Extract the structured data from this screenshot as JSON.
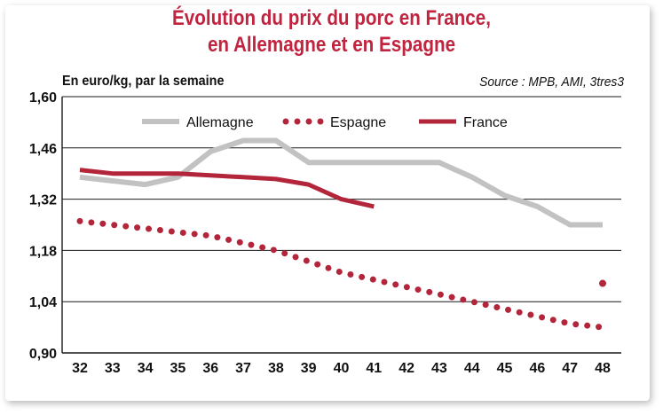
{
  "header": {
    "title_line1": "Évolution du prix du porc en France,",
    "title_line2": "en Allemagne et en Espagne",
    "unit_label": "En euro/kg, par la semaine",
    "source": "Source : MPB, AMI, 3tres3"
  },
  "colors": {
    "title": "#c0243f",
    "allemagne": "#c2c2c2",
    "espagne": "#b3253a",
    "france": "#b3253a"
  },
  "chart_data": {
    "type": "line",
    "x": [
      32,
      33,
      34,
      35,
      36,
      37,
      38,
      39,
      40,
      41,
      42,
      43,
      44,
      45,
      46,
      47,
      48
    ],
    "xticks": [
      "32",
      "33",
      "34",
      "35",
      "36",
      "37",
      "38",
      "39",
      "40",
      "41",
      "42",
      "43",
      "44",
      "45",
      "46",
      "47",
      "48"
    ],
    "yticks": [
      "1,60",
      "1,46",
      "1,32",
      "1,18",
      "1,04",
      "0,90"
    ],
    "ylim": [
      0.9,
      1.6
    ],
    "grid": true,
    "legend": "top",
    "series": [
      {
        "name": "Allemagne",
        "style": "solid",
        "color": "#c2c2c2",
        "values": [
          1.38,
          1.37,
          1.36,
          1.38,
          1.45,
          1.48,
          1.48,
          1.42,
          1.42,
          1.42,
          1.42,
          1.42,
          1.38,
          1.33,
          1.3,
          1.25,
          1.25
        ]
      },
      {
        "name": "Espagne",
        "style": "dotted",
        "color": "#b3253a",
        "values": [
          1.26,
          1.25,
          1.24,
          1.23,
          1.22,
          1.2,
          1.18,
          1.15,
          1.12,
          1.1,
          1.08,
          1.06,
          1.04,
          1.02,
          1.0,
          0.98,
          0.97
        ],
        "extra_point": {
          "x": 48,
          "y": 1.09
        }
      },
      {
        "name": "France",
        "style": "solid",
        "color": "#b3253a",
        "values": [
          1.4,
          1.39,
          1.39,
          1.39,
          1.385,
          1.38,
          1.375,
          1.36,
          1.32,
          1.3,
          null,
          null,
          null,
          null,
          null,
          null,
          null
        ]
      }
    ]
  }
}
